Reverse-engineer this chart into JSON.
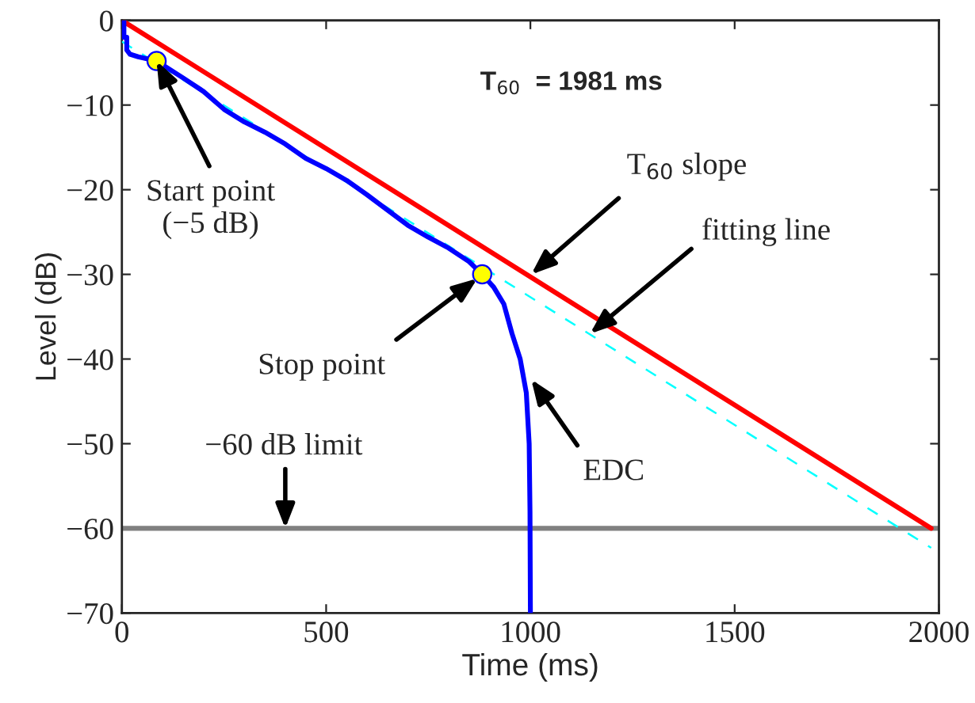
{
  "chart_data": {
    "type": "line",
    "xlabel": "Time (ms)",
    "ylabel": "Level (dB)",
    "xlim": [
      0,
      2000
    ],
    "ylim": [
      -70,
      0
    ],
    "xticks": [
      0,
      500,
      1000,
      1500,
      2000
    ],
    "yticks": [
      {
        "value": -70,
        "label": "−70"
      },
      {
        "value": -60,
        "label": "−60"
      },
      {
        "value": -50,
        "label": "−50"
      },
      {
        "value": -40,
        "label": "−40"
      },
      {
        "value": -30,
        "label": "−30"
      },
      {
        "value": -20,
        "label": "−20"
      },
      {
        "value": -10,
        "label": "−10"
      },
      0
    ],
    "grid": false,
    "legend": false,
    "series": [
      {
        "color": "#ff0000",
        "line_style": "solid",
        "x": [
          0,
          1981
        ],
        "values": [
          0,
          -60
        ]
      },
      {
        "color": "#00ffff",
        "line_style": "dashed",
        "x": [
          0,
          1981
        ],
        "values": [
          -2.5,
          -62.3
        ]
      },
      {
        "color": "#0000ff",
        "line_style": "solid",
        "x": [
          0,
          5,
          5,
          12,
          12,
          20,
          40,
          85,
          150,
          200,
          250,
          300,
          350,
          400,
          450,
          500,
          550,
          600,
          650,
          700,
          750,
          800,
          850,
          882,
          910,
          935,
          955,
          975,
          990,
          997,
          999,
          1000
        ],
        "values": [
          0,
          0,
          -2,
          -2,
          -3.5,
          -4,
          -4.3,
          -4.8,
          -6.8,
          -8.4,
          -10.5,
          -12,
          -13.2,
          -14.6,
          -16.3,
          -17.5,
          -18.9,
          -20.6,
          -22.4,
          -24.2,
          -25.6,
          -26.9,
          -28.5,
          -30,
          -31.5,
          -33.5,
          -37,
          -40,
          -44,
          -50,
          -58,
          -70
        ]
      },
      {
        "type": "scatter",
        "color": "#ffff00",
        "marker": "circle",
        "x": [
          85,
          882
        ],
        "values": [
          -4.8,
          -30
        ]
      }
    ],
    "ref_lines": [
      {
        "axis": "y",
        "value": -60,
        "color": "#808080"
      }
    ],
    "annotations": [
      {
        "text": "T$_{60}$  = 1981 ms"
      },
      {
        "text": "Start point\n(−5 dB)",
        "x": 85,
        "y": -4.8
      },
      {
        "text": "T$_{60}$ slope",
        "x": 1002,
        "y": -30
      },
      {
        "text": "fitting line",
        "x": 1146,
        "y": -37
      },
      {
        "text": "Stop point",
        "x": 870,
        "y": -30.5
      },
      {
        "text": "−60 dB limit",
        "x": 400,
        "y": -60
      },
      {
        "text": "EDC",
        "x": 1002,
        "y": -42.4
      }
    ]
  }
}
